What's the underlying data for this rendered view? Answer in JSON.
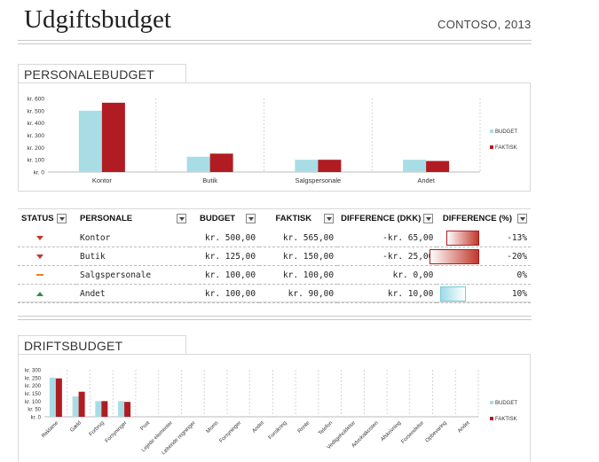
{
  "header": {
    "title": "Udgiftsbudget",
    "subtitle": "CONTOSO, 2013"
  },
  "personale": {
    "section_title": "PERSONALEBUDGET",
    "legend": {
      "budget": "BUDGET",
      "faktisk": "FAKTISK"
    },
    "colors": {
      "budget": "#a8dde6",
      "faktisk": "#b01c22"
    },
    "chart_data": {
      "type": "bar",
      "categories": [
        "Kontor",
        "Butik",
        "Salgspersonale",
        "Andet"
      ],
      "series": [
        {
          "name": "BUDGET",
          "values": [
            500,
            125,
            100,
            100
          ]
        },
        {
          "name": "FAKTISK",
          "values": [
            565,
            150,
            100,
            90
          ]
        }
      ],
      "ylim": [
        0,
        600
      ],
      "yticks": [
        "kr. 0",
        "kr. 100",
        "kr. 200",
        "kr. 300",
        "kr. 400",
        "kr. 500",
        "kr. 600"
      ],
      "grid": "vertical dashed",
      "legend_position": "right"
    }
  },
  "table": {
    "headers": {
      "status": "STATUS",
      "personale": "PERSONALE",
      "budget": "BUDGET",
      "faktisk": "FAKTISK",
      "diff": "DIFFERENCE (DKK)",
      "diffpct": "DIFFERENCE (%)"
    },
    "rows": [
      {
        "status": "down",
        "name": "Kontor",
        "budget": "kr. 500,00",
        "faktisk": "kr. 565,00",
        "diff": "-kr. 65,00",
        "pct": "-13%",
        "pct_value": -13
      },
      {
        "status": "down",
        "name": "Butik",
        "budget": "kr. 125,00",
        "faktisk": "kr. 150,00",
        "diff": "-kr. 25,00",
        "pct": "-20%",
        "pct_value": -20
      },
      {
        "status": "flat",
        "name": "Salgspersonale",
        "budget": "kr. 100,00",
        "faktisk": "kr. 100,00",
        "diff": "kr. 0,00",
        "pct": "0%",
        "pct_value": 0
      },
      {
        "status": "up",
        "name": "Andet",
        "budget": "kr. 100,00",
        "faktisk": "kr. 90,00",
        "diff": "kr. 10,00",
        "pct": "10%",
        "pct_value": 10
      }
    ]
  },
  "drift": {
    "section_title": "DRIFTSBUDGET",
    "legend": {
      "budget": "BUDGET",
      "faktisk": "FAKTISK"
    },
    "chart_data": {
      "type": "bar",
      "categories": [
        "Reklame",
        "Gæld",
        "Forbrug",
        "Forsyninger",
        "Post",
        "Lejede elementer",
        "Løbende regninger",
        "Moms",
        "Forsyninger",
        "Andet",
        "Forsikring",
        "Rente",
        "Telefon",
        "Vedligeholdelse",
        "Advokatkosten",
        "Afskrivning",
        "Forsendelse",
        "Opbevaring",
        "Andet"
      ],
      "series": [
        {
          "name": "BUDGET",
          "values": [
            250,
            130,
            100,
            100,
            0,
            0,
            0,
            0,
            0,
            0,
            0,
            0,
            0,
            0,
            0,
            0,
            0,
            0,
            0
          ]
        },
        {
          "name": "FAKTISK",
          "values": [
            245,
            160,
            100,
            95,
            0,
            0,
            0,
            0,
            0,
            0,
            0,
            0,
            0,
            0,
            0,
            0,
            0,
            0,
            0
          ]
        }
      ],
      "ylim": [
        0,
        300
      ],
      "yticks": [
        "kr. 0",
        "kr. 50",
        "kr. 100",
        "kr. 150",
        "kr. 200",
        "kr. 250",
        "kr. 300"
      ],
      "grid": "vertical dashed",
      "legend_position": "right"
    }
  }
}
